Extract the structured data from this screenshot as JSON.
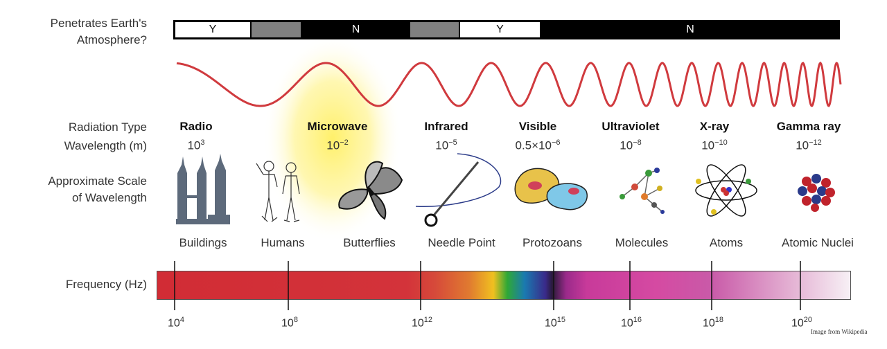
{
  "row_labels": {
    "penetrates_line1": "Penetrates Earth's",
    "penetrates_line2": "Atmosphere?",
    "radiation_type": "Radiation Type",
    "wavelength": "Wavelength (m)",
    "scale_line1": "Approximate Scale",
    "scale_line2": "of Wavelength",
    "frequency": "Frequency (Hz)"
  },
  "atmosphere_bar": [
    {
      "label": "Y",
      "value": "white"
    },
    {
      "label": "",
      "value": "gray"
    },
    {
      "label": "N",
      "value": "black"
    },
    {
      "label": "",
      "value": "gray"
    },
    {
      "label": "Y",
      "value": "white"
    },
    {
      "label": "N",
      "value": "black"
    }
  ],
  "radiation_types": [
    {
      "name": "Radio",
      "wl_base": "10",
      "wl_exp": "3",
      "object": "Buildings"
    },
    {
      "name": "Microwave",
      "wl_base": "10",
      "wl_exp": "−2",
      "object": "Humans"
    },
    {
      "name": "",
      "wl_base": "",
      "wl_exp": "",
      "object": "Butterflies"
    },
    {
      "name": "Infrared",
      "wl_base": "10",
      "wl_exp": "−5",
      "object": "Needle Point"
    },
    {
      "name": "Visible",
      "wl_base": "0.5×10",
      "wl_exp": "−6",
      "object": "Protozoans"
    },
    {
      "name": "Ultraviolet",
      "wl_base": "10",
      "wl_exp": "−8",
      "object": "Molecules"
    },
    {
      "name": "X-ray",
      "wl_base": "10",
      "wl_exp": "−10",
      "object": "Atoms"
    },
    {
      "name": "Gamma ray",
      "wl_base": "10",
      "wl_exp": "−12",
      "object": "Atomic Nuclei"
    }
  ],
  "frequency_ticks": [
    {
      "base": "10",
      "exp": "4"
    },
    {
      "base": "10",
      "exp": "8"
    },
    {
      "base": "10",
      "exp": "12"
    },
    {
      "base": "10",
      "exp": "15"
    },
    {
      "base": "10",
      "exp": "16"
    },
    {
      "base": "10",
      "exp": "18"
    },
    {
      "base": "10",
      "exp": "20"
    }
  ],
  "colors": {
    "wave": "#d03a3e",
    "radio_band": "#d5303a",
    "highlight": "#fff27a",
    "bar_black": "#000000",
    "bar_gray": "#808080"
  },
  "credit": "Image from Wikipedia"
}
